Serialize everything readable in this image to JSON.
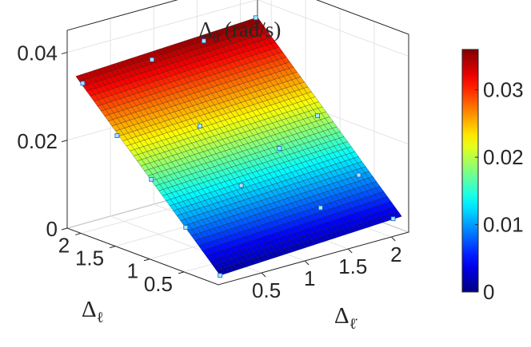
{
  "chart_data": {
    "type": "surface",
    "title": "Δθ̇ (rad/s)",
    "title_parts": {
      "symbol": "Δ",
      "sub": "θ̇",
      "unit": "(rad/s)"
    },
    "xlabel": "Δℓ̇",
    "xlabel_parts": {
      "symbol": "Δ",
      "sub": "ℓ̇"
    },
    "ylabel": "Δℓ",
    "ylabel_parts": {
      "symbol": "Δ",
      "sub": "ℓ"
    },
    "xlim": [
      0,
      2.2
    ],
    "ylim": [
      0,
      2.2
    ],
    "zlim": [
      0,
      0.045
    ],
    "x_ticks": [
      0.5,
      1,
      1.5,
      2
    ],
    "x_tick_labels": [
      "0.5",
      "1",
      "1.5",
      "2"
    ],
    "y_ticks": [
      0.5,
      1,
      1.5,
      2
    ],
    "y_tick_labels": [
      "0.5",
      "1",
      "1.5",
      "2"
    ],
    "z_ticks": [
      0,
      0.02,
      0.04
    ],
    "z_tick_labels": [
      "0",
      "0.02",
      "0.04"
    ],
    "colorbar": {
      "range": [
        0,
        0.036
      ],
      "ticks": [
        0,
        0.01,
        0.02,
        0.03
      ],
      "tick_labels": [
        "0",
        "0.01",
        "0.02",
        "0.03"
      ],
      "colormap": "jet"
    },
    "surface": {
      "x_range": [
        0.1,
        2.2
      ],
      "y_range": [
        0.1,
        2.2
      ],
      "grid": 40,
      "z_corners": {
        "x0_y0": 0.001,
        "x1_y0": 0.003,
        "x0_y1": 0.034,
        "x1_y1": 0.036
      }
    },
    "samples": [
      {
        "x": 0.1,
        "y": 0.1,
        "z": 0.001
      },
      {
        "x": 0.1,
        "y": 0.6,
        "z": 0.009
      },
      {
        "x": 0.1,
        "y": 1.1,
        "z": 0.017
      },
      {
        "x": 0.1,
        "y": 1.6,
        "z": 0.024
      },
      {
        "x": 0.1,
        "y": 2.1,
        "z": 0.033
      },
      {
        "x": 0.9,
        "y": 2.1,
        "z": 0.034
      },
      {
        "x": 0.9,
        "y": 1.4,
        "z": 0.023
      },
      {
        "x": 0.9,
        "y": 0.8,
        "z": 0.013
      },
      {
        "x": 1.5,
        "y": 2.1,
        "z": 0.035
      },
      {
        "x": 1.5,
        "y": 1.0,
        "z": 0.017
      },
      {
        "x": 1.5,
        "y": 0.4,
        "z": 0.007
      },
      {
        "x": 2.1,
        "y": 2.1,
        "z": 0.037
      },
      {
        "x": 2.1,
        "y": 1.2,
        "z": 0.02
      },
      {
        "x": 2.1,
        "y": 0.6,
        "z": 0.01
      },
      {
        "x": 2.1,
        "y": 0.1,
        "z": 0.003
      }
    ],
    "grid": true,
    "box": true
  }
}
